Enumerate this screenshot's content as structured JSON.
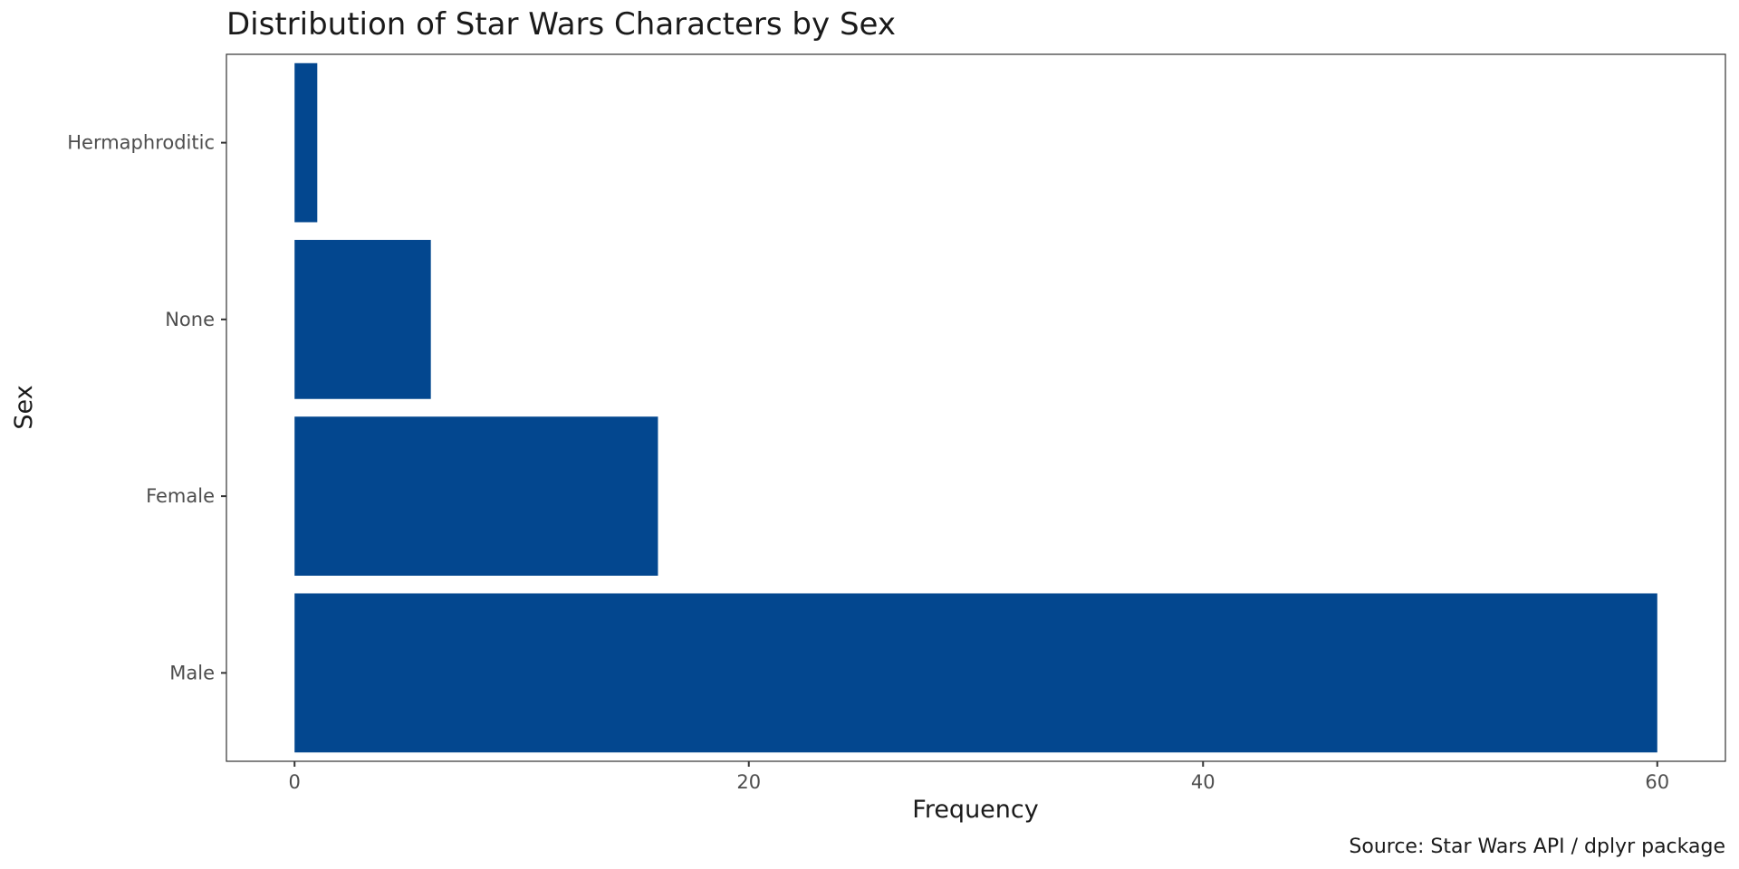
{
  "chart_data": {
    "type": "bar",
    "orientation": "horizontal",
    "title": "Distribution of Star Wars Characters by Sex",
    "xlabel": "Frequency",
    "ylabel": "Sex",
    "caption": "Source: Star Wars API / dplyr package",
    "categories": [
      "Male",
      "Female",
      "None",
      "Hermaphroditic"
    ],
    "values": [
      60,
      16,
      6,
      1
    ],
    "xlim": [
      -3,
      63
    ],
    "x_ticks": [
      0,
      20,
      40,
      60
    ],
    "bar_color": "#03478F",
    "grid": false,
    "legend": "none"
  }
}
